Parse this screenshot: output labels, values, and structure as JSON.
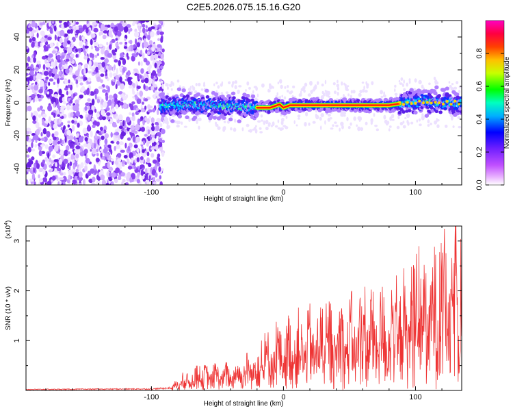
{
  "figure": {
    "title": "C2E5.2026.075.15.16.G20"
  },
  "chart_data": [
    {
      "type": "heatmap",
      "title": "C2E5.2026.075.15.16.G20",
      "xlabel": "Height of straight line (km)",
      "ylabel": "Frequency (Hz)",
      "xlim": [
        -195,
        135
      ],
      "ylim": [
        -50,
        50
      ],
      "xticks": [
        -100,
        0,
        100
      ],
      "yticks": [
        -40,
        -20,
        0,
        20,
        40
      ],
      "colorbar": {
        "label": "Normalized spectral amplitude",
        "range": [
          0,
          1
        ],
        "ticks": [
          0.0,
          0.2,
          0.4,
          0.6,
          0.8
        ],
        "tick_labels": [
          "0.0",
          "0.2",
          "0.4",
          "0.6",
          "0.8"
        ],
        "colors": [
          "#ffffff",
          "#e040ff",
          "#a040ff",
          "#6020ff",
          "#0000ff",
          "#00c8ff",
          "#00ff60",
          "#c8ff00",
          "#ffa000",
          "#ff0000",
          "#ff00a0"
        ]
      },
      "regions": [
        {
          "name": "noise",
          "x_range": [
            -195,
            -95
          ],
          "freq_range": [
            -50,
            50
          ],
          "amplitude": 0.1
        },
        {
          "name": "signal",
          "x_range": [
            -93,
            135
          ],
          "track": [
            [
              -93,
              -2
            ],
            [
              -70,
              -1
            ],
            [
              -40,
              -2
            ],
            [
              -22,
              -3
            ],
            [
              -10,
              -3
            ],
            [
              -3,
              -1
            ],
            [
              0,
              -3
            ],
            [
              5,
              -1.5
            ],
            [
              80,
              -1.5
            ],
            [
              92,
              0
            ],
            [
              110,
              1
            ],
            [
              120,
              0
            ],
            [
              135,
              0
            ]
          ],
          "amplitude_peak": 1.0,
          "peak_range": [
            -20,
            90
          ]
        }
      ]
    },
    {
      "type": "line",
      "xlabel": "Height of straight line (km)",
      "ylabel": "SNR (10 * v/v)",
      "y_scale_label": "(x10",
      "y_scale_exp": "4",
      "y_scale_close": ")",
      "xlim": [
        -195,
        135
      ],
      "ylim": [
        0,
        3.3
      ],
      "xticks": [
        -100,
        0,
        100
      ],
      "yticks": [
        1,
        2,
        3
      ],
      "color": "#ee3333",
      "envelope": [
        [
          -195,
          0.02
        ],
        [
          -100,
          0.03
        ],
        [
          -85,
          0.05
        ],
        [
          -80,
          0.25
        ],
        [
          -65,
          0.45
        ],
        [
          -40,
          0.5
        ],
        [
          -25,
          0.7
        ],
        [
          -15,
          0.95
        ],
        [
          0,
          1.3
        ],
        [
          20,
          1.5
        ],
        [
          40,
          1.6
        ],
        [
          60,
          1.8
        ],
        [
          80,
          1.9
        ],
        [
          100,
          2.4
        ],
        [
          120,
          2.7
        ],
        [
          135,
          3.0
        ]
      ]
    }
  ]
}
